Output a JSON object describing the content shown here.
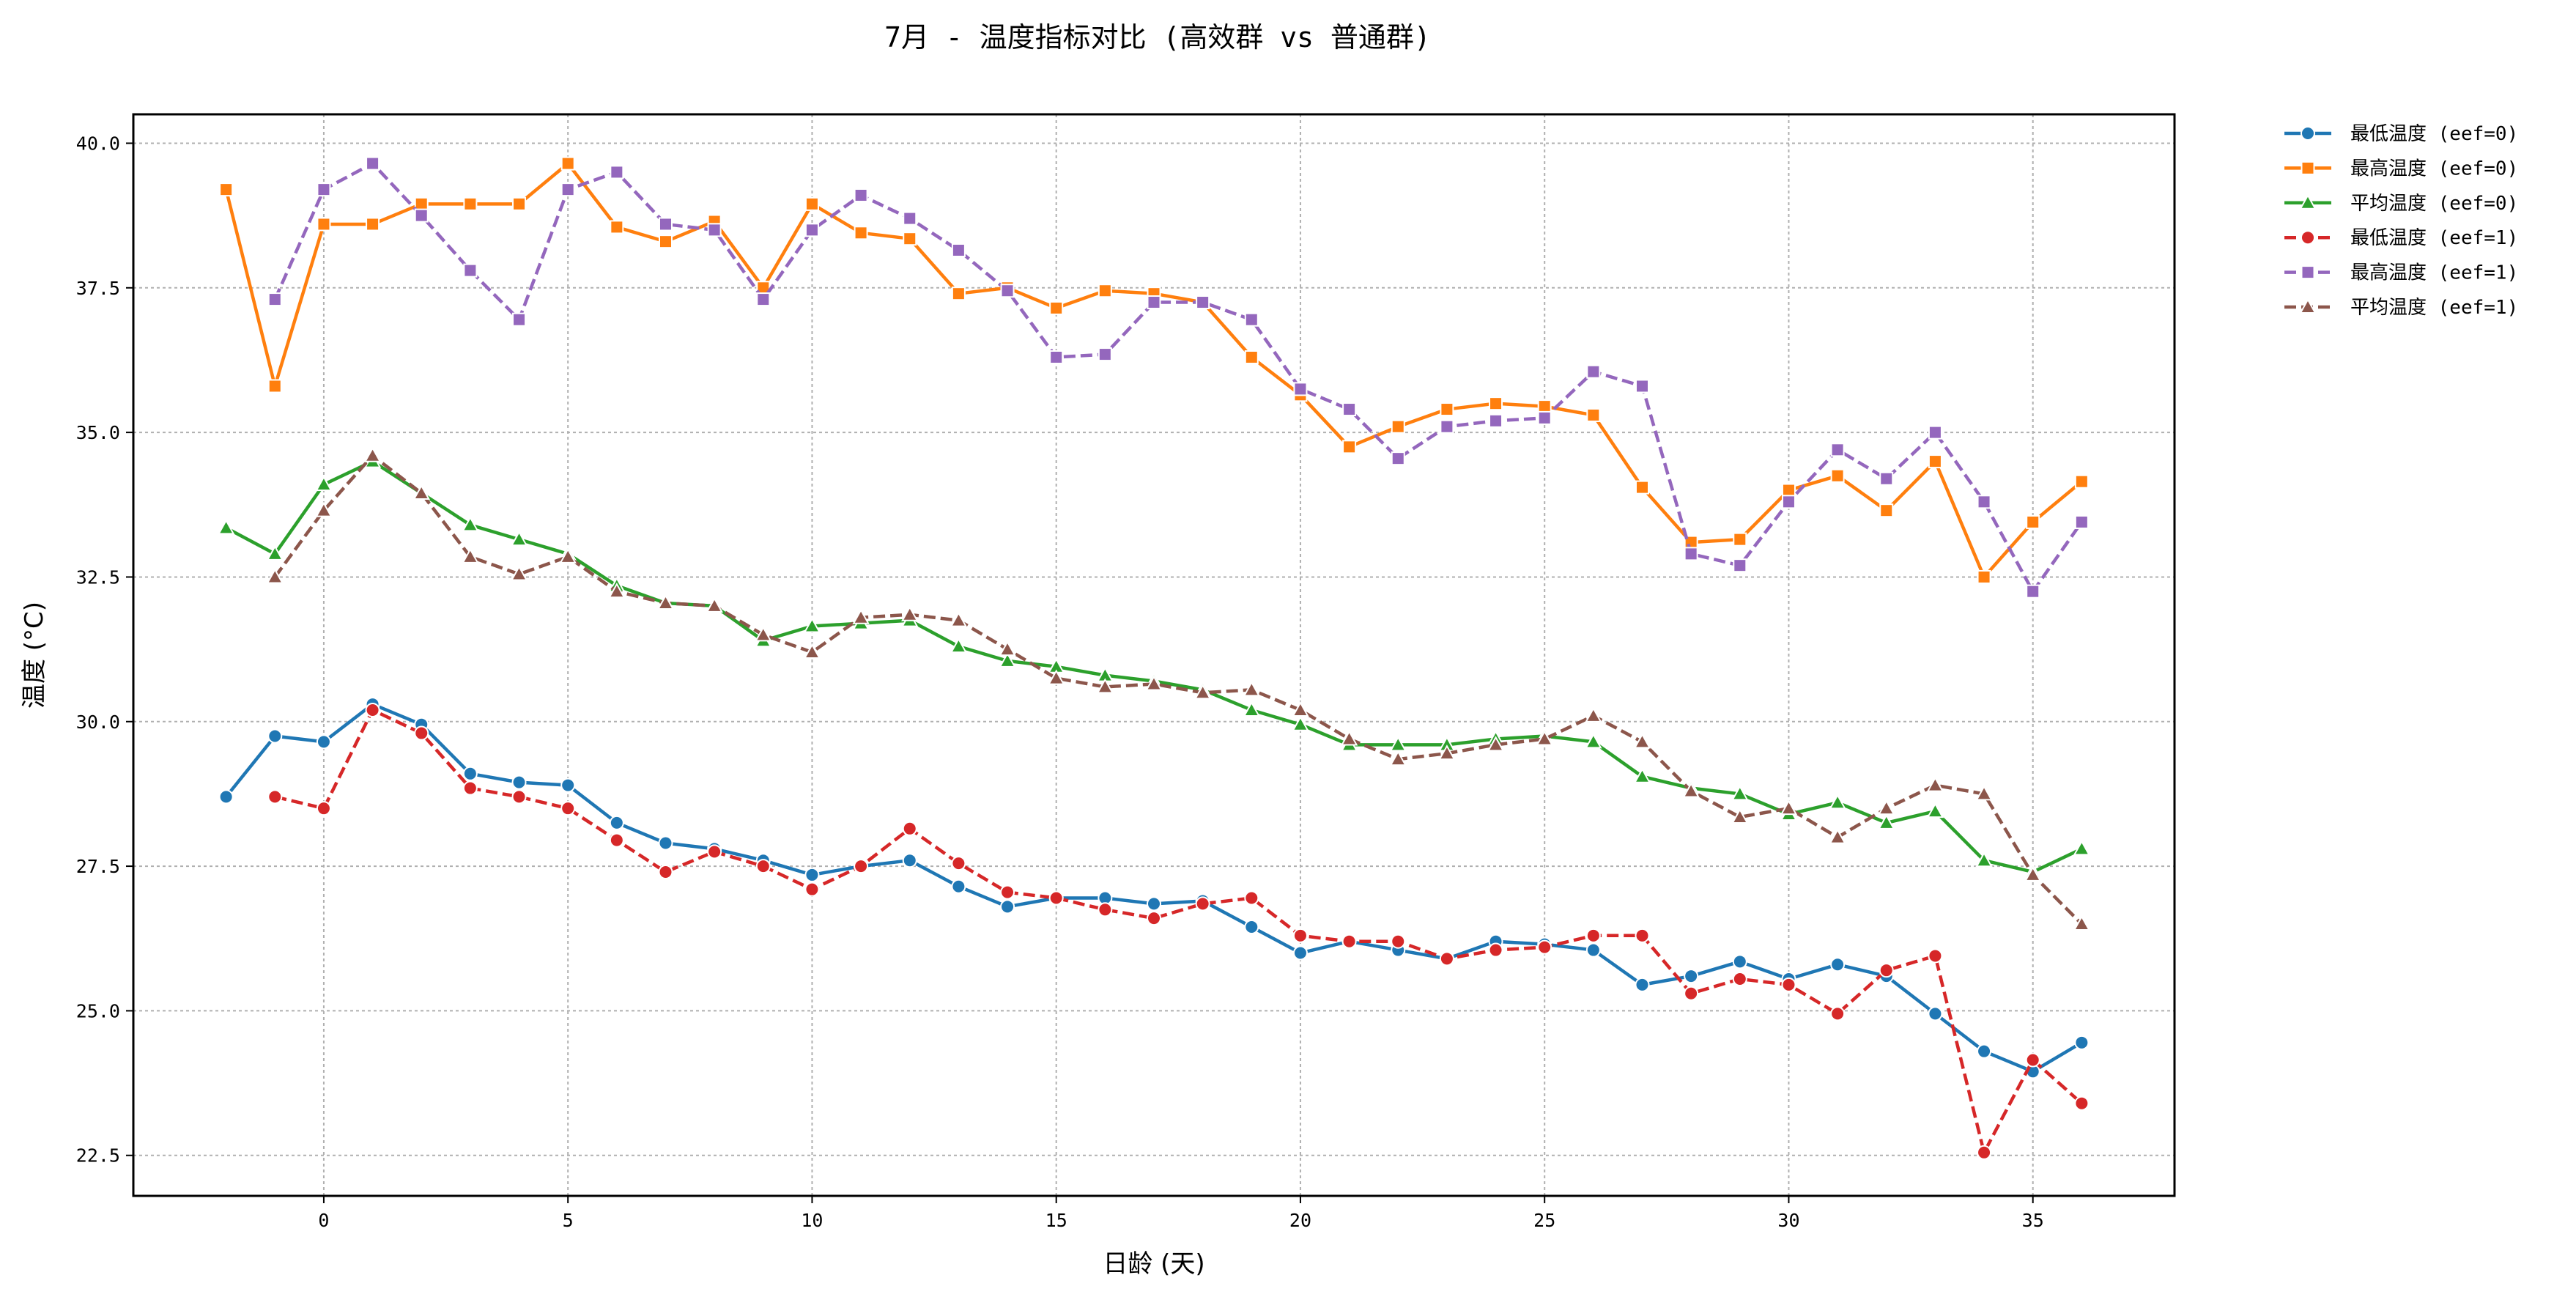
{
  "chart_data": {
    "type": "line",
    "title": "7月 - 温度指标对比 (高效群 vs 普通群)",
    "xlabel": "日龄 (天)",
    "ylabel": "温度 (°C)",
    "xlim": [
      -3.9,
      37.9
    ],
    "ylim": [
      21.8,
      40.5
    ],
    "x_ticks": [
      0,
      5,
      10,
      15,
      20,
      25,
      30,
      35
    ],
    "y_ticks": [
      22.5,
      25.0,
      27.5,
      30.0,
      32.5,
      35.0,
      37.5,
      40.0
    ],
    "x_tick_labels": [
      "0",
      "5",
      "10",
      "15",
      "20",
      "25",
      "30",
      "35"
    ],
    "y_tick_labels": [
      "22.5",
      "25.0",
      "27.5",
      "30.0",
      "32.5",
      "35.0",
      "37.5",
      "40.0"
    ],
    "grid": true,
    "legend_position": "outside-top-right",
    "series": [
      {
        "name": "最低温度 (eef=0)",
        "color": "#1f77b4",
        "marker": "circle",
        "dash": "solid",
        "x": [
          -2,
          -1,
          0,
          1,
          2,
          3,
          4,
          5,
          6,
          7,
          8,
          9,
          10,
          11,
          12,
          13,
          14,
          15,
          16,
          17,
          18,
          19,
          20,
          21,
          22,
          23,
          24,
          25,
          26,
          27,
          28,
          29,
          30,
          31,
          32,
          33,
          34,
          35,
          36
        ],
        "y": [
          28.7,
          29.75,
          29.65,
          30.3,
          29.95,
          29.1,
          28.95,
          28.9,
          28.25,
          27.9,
          27.8,
          27.6,
          27.35,
          27.5,
          27.6,
          27.15,
          26.8,
          26.95,
          26.95,
          26.85,
          26.9,
          26.45,
          26.0,
          26.2,
          26.05,
          25.9,
          26.2,
          26.15,
          26.05,
          25.45,
          25.6,
          25.85,
          25.55,
          25.8,
          25.6,
          24.95,
          24.3,
          23.95,
          24.45
        ]
      },
      {
        "name": "最高温度 (eef=0)",
        "color": "#ff7f0e",
        "marker": "square",
        "dash": "solid",
        "x": [
          -2,
          -1,
          0,
          1,
          2,
          3,
          4,
          5,
          6,
          7,
          8,
          9,
          10,
          11,
          12,
          13,
          14,
          15,
          16,
          17,
          18,
          19,
          20,
          21,
          22,
          23,
          24,
          25,
          26,
          27,
          28,
          29,
          30,
          31,
          32,
          33,
          34,
          35,
          36
        ],
        "y": [
          39.2,
          35.8,
          38.6,
          38.6,
          38.95,
          38.95,
          38.95,
          39.65,
          38.55,
          38.3,
          38.65,
          37.5,
          38.95,
          38.45,
          38.35,
          37.4,
          37.5,
          37.15,
          37.45,
          37.4,
          37.25,
          36.3,
          35.65,
          34.75,
          35.1,
          35.4,
          35.5,
          35.45,
          35.3,
          34.05,
          33.1,
          33.15,
          34.0,
          34.25,
          33.65,
          34.5,
          32.5,
          33.45,
          34.15
        ]
      },
      {
        "name": "平均温度 (eef=0)",
        "color": "#2ca02c",
        "marker": "triangle",
        "dash": "solid",
        "x": [
          -2,
          -1,
          0,
          1,
          2,
          3,
          4,
          5,
          6,
          7,
          8,
          9,
          10,
          11,
          12,
          13,
          14,
          15,
          16,
          17,
          18,
          19,
          20,
          21,
          22,
          23,
          24,
          25,
          26,
          27,
          28,
          29,
          30,
          31,
          32,
          33,
          34,
          35,
          36
        ],
        "y": [
          33.35,
          32.9,
          34.1,
          34.5,
          33.95,
          33.4,
          33.15,
          32.9,
          32.35,
          32.05,
          32.0,
          31.4,
          31.65,
          31.7,
          31.75,
          31.3,
          31.05,
          30.95,
          30.8,
          30.7,
          30.55,
          30.2,
          29.95,
          29.6,
          29.6,
          29.6,
          29.7,
          29.75,
          29.65,
          29.05,
          28.85,
          28.75,
          28.4,
          28.6,
          28.25,
          28.45,
          27.6,
          27.4,
          27.8
        ]
      },
      {
        "name": "最低温度 (eef=1)",
        "color": "#d62728",
        "marker": "circle",
        "dash": "dashed",
        "x": [
          -1,
          0,
          1,
          2,
          3,
          4,
          5,
          6,
          7,
          8,
          9,
          10,
          11,
          12,
          13,
          14,
          15,
          16,
          17,
          18,
          19,
          20,
          21,
          22,
          23,
          24,
          25,
          26,
          27,
          28,
          29,
          30,
          31,
          32,
          33,
          34,
          35,
          36
        ],
        "y": [
          28.7,
          28.5,
          30.2,
          29.8,
          28.85,
          28.7,
          28.5,
          27.95,
          27.4,
          27.75,
          27.5,
          27.1,
          27.5,
          28.15,
          27.55,
          27.05,
          26.95,
          26.75,
          26.6,
          26.85,
          26.95,
          26.3,
          26.2,
          26.2,
          25.9,
          26.05,
          26.1,
          26.3,
          26.3,
          25.3,
          25.55,
          25.45,
          24.95,
          25.7,
          25.95,
          22.55,
          24.15,
          23.4
        ]
      },
      {
        "name": "最高温度 (eef=1)",
        "color": "#9467bd",
        "marker": "square",
        "dash": "dashed",
        "x": [
          -1,
          0,
          1,
          2,
          3,
          4,
          5,
          6,
          7,
          8,
          9,
          10,
          11,
          12,
          13,
          14,
          15,
          16,
          17,
          18,
          19,
          20,
          21,
          22,
          23,
          24,
          25,
          26,
          27,
          28,
          29,
          30,
          31,
          32,
          33,
          34,
          35,
          36
        ],
        "y": [
          37.3,
          39.2,
          39.65,
          38.75,
          37.8,
          36.95,
          39.2,
          39.5,
          38.6,
          38.5,
          37.3,
          38.5,
          39.1,
          38.7,
          38.15,
          37.45,
          36.3,
          36.35,
          37.25,
          37.25,
          36.95,
          35.75,
          35.4,
          34.55,
          35.1,
          35.2,
          35.25,
          36.05,
          35.8,
          32.9,
          32.7,
          33.8,
          34.7,
          34.2,
          35.0,
          33.8,
          32.25,
          33.45
        ]
      },
      {
        "name": "平均温度 (eef=1)",
        "color": "#8c564b",
        "marker": "triangle",
        "dash": "dashed",
        "x": [
          -1,
          0,
          1,
          2,
          3,
          4,
          5,
          6,
          7,
          8,
          9,
          10,
          11,
          12,
          13,
          14,
          15,
          16,
          17,
          18,
          19,
          20,
          21,
          22,
          23,
          24,
          25,
          26,
          27,
          28,
          29,
          30,
          31,
          32,
          33,
          34,
          35,
          36
        ],
        "y": [
          32.5,
          33.65,
          34.6,
          33.95,
          32.85,
          32.55,
          32.85,
          32.25,
          32.05,
          32.0,
          31.5,
          31.2,
          31.8,
          31.85,
          31.75,
          31.25,
          30.75,
          30.6,
          30.65,
          30.5,
          30.55,
          30.2,
          29.7,
          29.35,
          29.45,
          29.6,
          29.7,
          30.1,
          29.65,
          28.8,
          28.35,
          28.5,
          28.0,
          28.5,
          28.9,
          28.75,
          27.35,
          26.5
        ]
      }
    ]
  }
}
